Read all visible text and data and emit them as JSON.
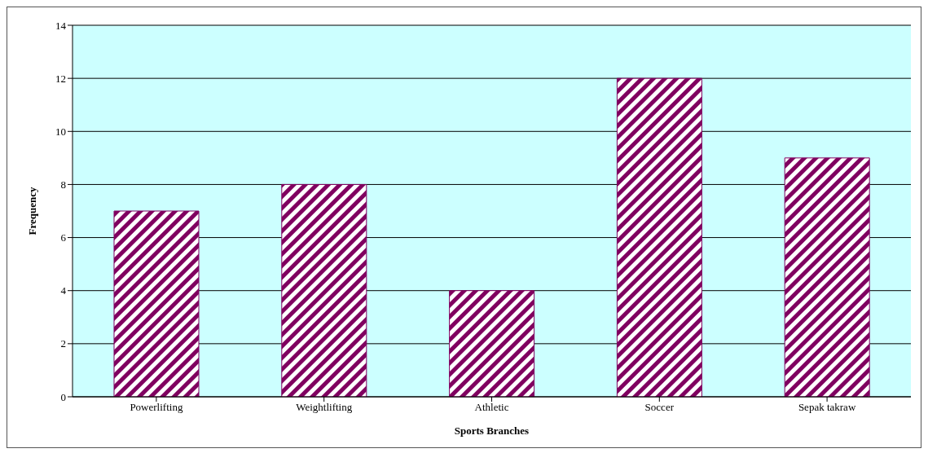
{
  "chart_data": {
    "type": "bar",
    "xlabel": "Sports Branches",
    "ylabel": "Frequency",
    "categories": [
      "Powerlifting",
      "Weightlifting",
      "Athletic",
      "Soccer",
      "Sepak takraw"
    ],
    "values": [
      7,
      8,
      4,
      12,
      9
    ],
    "color": "#800060",
    "ylim": [
      0,
      14
    ],
    "yticks": [
      0,
      2,
      4,
      6,
      8,
      10,
      12,
      14
    ],
    "grid": "y"
  }
}
